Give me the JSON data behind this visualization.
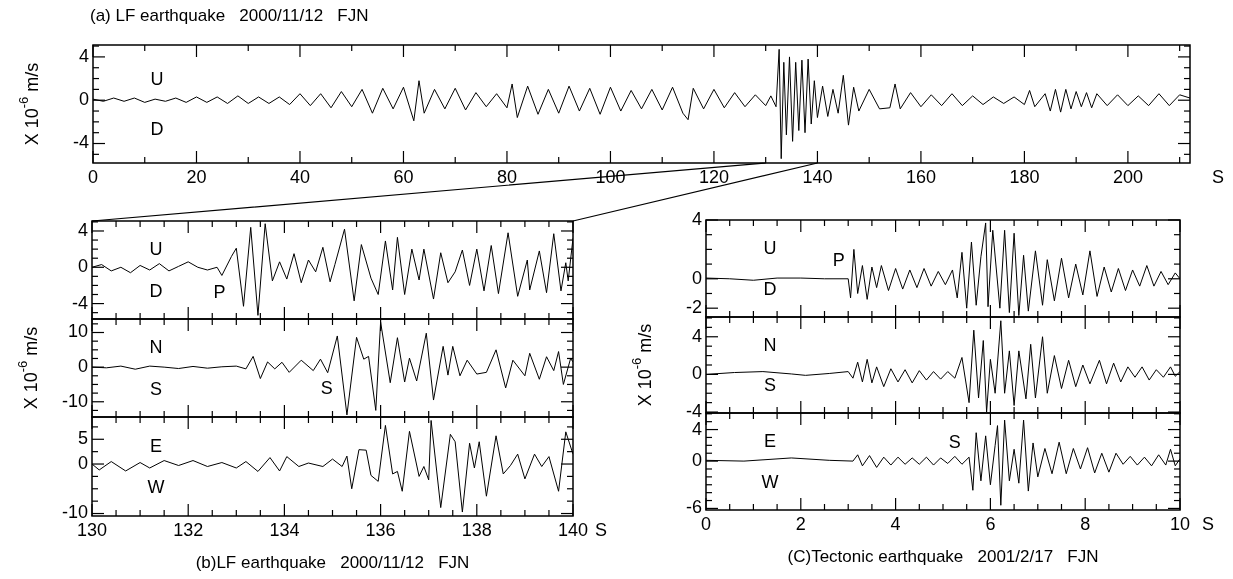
{
  "chart_data": [
    {
      "type": "line",
      "title": "(a) LF earthquake   2000/11/12   FJN",
      "xlabel": "S",
      "ylabel": "X 10$^{-6}$ m/s",
      "marker": "none",
      "xlim": [
        0,
        212
      ],
      "ylim": [
        -5.8,
        5.1
      ],
      "xticks": [
        0,
        {
          "value": 10,
          "label": null
        },
        20,
        {
          "value": 30,
          "label": null
        },
        40,
        {
          "value": 50,
          "label": null
        },
        60,
        {
          "value": 70,
          "label": null
        },
        80,
        {
          "value": 90,
          "label": null
        },
        100,
        {
          "value": 110,
          "label": null
        },
        120,
        {
          "value": 130,
          "label": null
        },
        140,
        {
          "value": 150,
          "label": null
        },
        160,
        {
          "value": 170,
          "label": null
        },
        180,
        {
          "value": 190,
          "label": null
        },
        200,
        {
          "value": 210,
          "label": null
        }
      ],
      "yticks": [
        {
          "value": -5,
          "label": null
        },
        -4,
        {
          "value": -3,
          "label": null
        },
        {
          "value": -2,
          "label": null
        },
        {
          "value": -1,
          "label": null
        },
        0,
        {
          "value": 1,
          "label": null
        },
        {
          "value": 2,
          "label": null
        },
        {
          "value": 3,
          "label": null
        },
        4,
        {
          "value": 5,
          "label": null
        }
      ],
      "annotations": [
        "U",
        "D"
      ],
      "series": [
        {
          "color": "#000000",
          "x": [
            0,
            2,
            4,
            6,
            8,
            10,
            12,
            14,
            16,
            18,
            20,
            22,
            24,
            26,
            28,
            30,
            32,
            34,
            36,
            38,
            40,
            42,
            44,
            46,
            48,
            50,
            52,
            54,
            56,
            58,
            60,
            62,
            63,
            64,
            66,
            68,
            70,
            72,
            74,
            76,
            78,
            80,
            81,
            82,
            84,
            86,
            88,
            90,
            92,
            94,
            96,
            98,
            100,
            102,
            104,
            106,
            108,
            110,
            112,
            114,
            115,
            116,
            118,
            120,
            122,
            124,
            126,
            128,
            130,
            131,
            132,
            132.6,
            133,
            133.5,
            134,
            134.6,
            135.2,
            135.8,
            136.4,
            137,
            137.6,
            138.2,
            138.8,
            139.4,
            140,
            141,
            142,
            143,
            144,
            145,
            146,
            147,
            148,
            150,
            152,
            154,
            155,
            156,
            158,
            160,
            162,
            164,
            166,
            168,
            170,
            172,
            174,
            176,
            178,
            180,
            181,
            182,
            184,
            185,
            186,
            187,
            188,
            189,
            190,
            191,
            192,
            193,
            194,
            196,
            198,
            200,
            202,
            204,
            206,
            208,
            210,
            212
          ],
          "values": [
            0.1,
            -0.1,
            0.2,
            -0.1,
            0.2,
            -0.2,
            0.1,
            -0.1,
            0.2,
            -0.2,
            0.3,
            -0.2,
            0.3,
            -0.3,
            0.4,
            -0.3,
            0.3,
            -0.3,
            0.3,
            -0.4,
            0.6,
            -0.5,
            0.6,
            -0.7,
            0.8,
            -0.6,
            1.0,
            -1.2,
            1.1,
            -0.8,
            1.2,
            -1.9,
            1.8,
            -1.2,
            1.0,
            -0.8,
            1.1,
            -0.9,
            0.7,
            -0.6,
            0.6,
            -0.7,
            1.5,
            -1.6,
            1.3,
            -1.3,
            1.0,
            -1.2,
            1.3,
            -1.0,
            1.1,
            -1.3,
            1.2,
            -1.0,
            0.9,
            -0.8,
            1.0,
            -0.9,
            1.2,
            -1.2,
            -1.8,
            1.1,
            -0.8,
            1.0,
            -0.7,
            0.7,
            -0.6,
            0.5,
            -0.5,
            0.4,
            -0.6,
            4.7,
            -5.4,
            3.5,
            -3.2,
            4.0,
            -3.8,
            3.5,
            -2.8,
            3.7,
            -3.0,
            3.8,
            -2.2,
            1.8,
            -1.6,
            1.3,
            -1.5,
            1.0,
            -1.2,
            2.3,
            -2.3,
            1.2,
            -1.0,
            1.0,
            -0.8,
            -0.7,
            1.5,
            -0.8,
            0.7,
            -0.6,
            0.5,
            -0.5,
            0.6,
            -0.5,
            0.4,
            -0.4,
            0.3,
            -0.3,
            0.3,
            -0.4,
            0.9,
            -0.6,
            0.6,
            -1.0,
            1.0,
            -1.1,
            1.0,
            -0.8,
            0.8,
            -0.6,
            0.7,
            -0.7,
            0.6,
            -0.5,
            0.5,
            -0.5,
            0.4,
            -0.5,
            0.6,
            -0.5,
            0.5,
            0.2
          ]
        }
      ]
    },
    {
      "type": "line",
      "marker": "none",
      "tick_labels": "y",
      "xlim": [
        130,
        140
      ],
      "ylim": [
        -5.7,
        5.1
      ],
      "xticks": [
        130,
        {
          "value": 130.5,
          "label": null
        },
        {
          "value": 131,
          "label": null
        },
        {
          "value": 131.5,
          "label": null
        },
        132,
        {
          "value": 132.5,
          "label": null
        },
        {
          "value": 133,
          "label": null
        },
        {
          "value": 133.5,
          "label": null
        },
        134,
        {
          "value": 134.5,
          "label": null
        },
        {
          "value": 135,
          "label": null
        },
        {
          "value": 135.5,
          "label": null
        },
        136,
        {
          "value": 136.5,
          "label": null
        },
        {
          "value": 137,
          "label": null
        },
        {
          "value": 137.5,
          "label": null
        },
        138,
        {
          "value": 138.5,
          "label": null
        },
        {
          "value": 139,
          "label": null
        },
        {
          "value": 139.5,
          "label": null
        },
        140
      ],
      "yticks": [
        {
          "value": -5,
          "label": null
        },
        -4,
        {
          "value": -3,
          "label": null
        },
        {
          "value": -2,
          "label": null
        },
        {
          "value": -1,
          "label": null
        },
        0,
        {
          "value": 1,
          "label": null
        },
        {
          "value": 2,
          "label": null
        },
        {
          "value": 3,
          "label": null
        },
        4,
        {
          "value": 5,
          "label": null
        }
      ],
      "annotations": [
        "U",
        "D",
        "P"
      ],
      "series": [
        {
          "color": "#000000",
          "x": [
            130,
            130.2,
            130.4,
            130.6,
            130.8,
            131,
            131.2,
            131.4,
            131.6,
            131.8,
            132,
            132.2,
            132.4,
            132.6,
            132.7,
            132.9,
            133,
            133.15,
            133.3,
            133.45,
            133.6,
            133.75,
            133.9,
            134.05,
            134.2,
            134.35,
            134.5,
            134.65,
            134.8,
            134.95,
            135.05,
            135.25,
            135.45,
            135.6,
            135.8,
            135.95,
            136.1,
            136.25,
            136.35,
            136.5,
            136.65,
            136.8,
            136.9,
            137.1,
            137.25,
            137.4,
            137.55,
            137.7,
            137.85,
            138,
            138.15,
            138.3,
            138.45,
            138.65,
            138.85,
            139.05,
            139.1,
            139.3,
            139.45,
            139.6,
            139.75,
            139.85,
            139.9,
            140
          ],
          "values": [
            0,
            0.3,
            -0.4,
            0,
            -0.6,
            0.2,
            -0.3,
            0.4,
            -0.4,
            0.1,
            0.6,
            0,
            -0.3,
            0,
            -0.9,
            1.2,
            2.1,
            -4.3,
            4.4,
            -5.3,
            4.8,
            -1.5,
            0.6,
            -1.3,
            1.5,
            -1.7,
            0.8,
            -0.5,
            2.2,
            -1.6,
            0.3,
            4.2,
            -3.7,
            2.5,
            -1.2,
            -3.0,
            2.9,
            -2.5,
            3.3,
            -3.0,
            2.0,
            -1.4,
            2.0,
            -3.5,
            1.6,
            -1.7,
            -0.5,
            1.9,
            -2.0,
            2.0,
            -2.6,
            2.4,
            -2.9,
            3.8,
            -3.2,
            0.8,
            -2.5,
            1.8,
            -2.8,
            3.7,
            -2.6,
            0.5,
            -1.5,
            3.2
          ]
        }
      ]
    },
    {
      "type": "line",
      "ylabel": "X 10$^{-6}$ m/s",
      "marker": "none",
      "tick_labels": "y",
      "xlim": [
        130,
        140
      ],
      "ylim": [
        -14.4,
        13.9
      ],
      "xticks": [
        130,
        {
          "value": 130.5,
          "label": null
        },
        {
          "value": 131,
          "label": null
        },
        {
          "value": 131.5,
          "label": null
        },
        132,
        {
          "value": 132.5,
          "label": null
        },
        {
          "value": 133,
          "label": null
        },
        {
          "value": 133.5,
          "label": null
        },
        134,
        {
          "value": 134.5,
          "label": null
        },
        {
          "value": 135,
          "label": null
        },
        {
          "value": 135.5,
          "label": null
        },
        136,
        {
          "value": 136.5,
          "label": null
        },
        {
          "value": 137,
          "label": null
        },
        {
          "value": 137.5,
          "label": null
        },
        138,
        {
          "value": 138.5,
          "label": null
        },
        {
          "value": 139,
          "label": null
        },
        {
          "value": 139.5,
          "label": null
        },
        140
      ],
      "yticks": [
        {
          "value": -12.5,
          "label": null
        },
        -10,
        {
          "value": -7.5,
          "label": null
        },
        {
          "value": -5,
          "label": null
        },
        {
          "value": -2.5,
          "label": null
        },
        0,
        {
          "value": 2.5,
          "label": null
        },
        {
          "value": 5,
          "label": null
        },
        {
          "value": 7.5,
          "label": null
        },
        10,
        {
          "value": 12.5,
          "label": null
        }
      ],
      "annotations": [
        "N",
        "S",
        "S"
      ],
      "series": [
        {
          "color": "#000000",
          "x": [
            130,
            130.3,
            130.6,
            130.9,
            131.2,
            131.5,
            131.8,
            132.1,
            132.4,
            132.7,
            133,
            133.2,
            133.35,
            133.5,
            133.65,
            133.8,
            133.95,
            134.1,
            134.35,
            134.6,
            134.75,
            134.9,
            135.1,
            135.3,
            135.5,
            135.65,
            135.75,
            135.9,
            136,
            136.2,
            136.35,
            136.5,
            136.6,
            136.75,
            136.95,
            137.1,
            137.3,
            137.4,
            137.5,
            137.65,
            137.8,
            138,
            138.2,
            138.4,
            138.6,
            138.75,
            139,
            139.1,
            139.3,
            139.45,
            139.6,
            139.7,
            139.8,
            139.95,
            140
          ],
          "values": [
            0,
            -0.2,
            0.3,
            -0.6,
            0.3,
            0,
            -0.4,
            0.2,
            -0.3,
            0.1,
            0.3,
            -0.5,
            3.1,
            -3.3,
            1.5,
            -0.5,
            1.4,
            -1.5,
            2.0,
            -1.0,
            2.3,
            -1.6,
            9.0,
            -13.8,
            8.6,
            2.3,
            3.1,
            -12.5,
            13.0,
            -4.5,
            8.5,
            -4.3,
            2.6,
            -4.0,
            9.8,
            -9.5,
            6.0,
            -2.3,
            6.0,
            -2.5,
            2.0,
            -2.0,
            -1.5,
            5.0,
            -6.0,
            2.0,
            -2.5,
            4.0,
            -3.5,
            3.0,
            -1.0,
            4.5,
            -5.0,
            2.5,
            1.5
          ]
        }
      ]
    },
    {
      "type": "line",
      "title": "(b)LF earthquake   2000/11/12   FJN",
      "xlabel": "S",
      "marker": "none",
      "xlim": [
        130,
        140
      ],
      "ylim": [
        -10.5,
        9.5
      ],
      "xticks": [
        130,
        {
          "value": 130.5,
          "label": null
        },
        {
          "value": 131,
          "label": null
        },
        {
          "value": 131.5,
          "label": null
        },
        132,
        {
          "value": 132.5,
          "label": null
        },
        {
          "value": 133,
          "label": null
        },
        {
          "value": 133.5,
          "label": null
        },
        134,
        {
          "value": 134.5,
          "label": null
        },
        {
          "value": 135,
          "label": null
        },
        {
          "value": 135.5,
          "label": null
        },
        136,
        {
          "value": 136.5,
          "label": null
        },
        {
          "value": 137,
          "label": null
        },
        {
          "value": 137.5,
          "label": null
        },
        138,
        {
          "value": 138.5,
          "label": null
        },
        {
          "value": 139,
          "label": null
        },
        {
          "value": 139.5,
          "label": null
        },
        140
      ],
      "yticks": [
        -10,
        {
          "value": -7.5,
          "label": null
        },
        {
          "value": -5,
          "label": null
        },
        {
          "value": -2.5,
          "label": null
        },
        0,
        {
          "value": 2.5,
          "label": null
        },
        5,
        {
          "value": 7.5,
          "label": null
        }
      ],
      "annotations": [
        "E",
        "W"
      ],
      "series": [
        {
          "color": "#000000",
          "x": [
            130,
            130.15,
            130.4,
            130.7,
            131,
            131.2,
            131.5,
            131.8,
            132.1,
            132.4,
            132.7,
            133,
            133.2,
            133.45,
            133.7,
            133.9,
            134.05,
            134.3,
            134.5,
            134.8,
            135,
            135.2,
            135.3,
            135.4,
            135.55,
            135.7,
            135.8,
            135.95,
            136.1,
            136.25,
            136.35,
            136.45,
            136.6,
            136.8,
            136.9,
            137,
            137.05,
            137.25,
            137.45,
            137.55,
            137.7,
            137.85,
            137.95,
            138.05,
            138.2,
            138.4,
            138.55,
            138.7,
            138.85,
            139,
            139.2,
            139.35,
            139.5,
            139.7,
            139.85,
            140
          ],
          "values": [
            0,
            -1.2,
            0.5,
            -1.4,
            0.3,
            -0.8,
            0.7,
            -0.3,
            0.7,
            -0.5,
            0.3,
            -0.8,
            0.5,
            -1.5,
            1.3,
            -1.4,
            1.5,
            -0.5,
            0.2,
            -0.5,
            1.0,
            -0.5,
            1.6,
            -5.0,
            2.9,
            2.8,
            -2.3,
            -3.5,
            7.8,
            -2.0,
            -1.5,
            -5.5,
            6.6,
            -2.5,
            -0.5,
            -3.2,
            8.8,
            -8.8,
            6.0,
            4.5,
            -9.7,
            4.2,
            -0.8,
            4.5,
            -6.5,
            5.7,
            -2.0,
            -0.3,
            2.0,
            -3.0,
            2.0,
            -0.5,
            1.5,
            -5.5,
            6.5,
            2.0
          ]
        }
      ]
    },
    {
      "type": "line",
      "marker": "none",
      "tick_labels": "y",
      "xlim": [
        0,
        10
      ],
      "ylim": [
        -2.6,
        4
      ],
      "xticks": [
        0,
        {
          "value": 0.5,
          "label": null
        },
        {
          "value": 1,
          "label": null
        },
        {
          "value": 1.5,
          "label": null
        },
        2,
        {
          "value": 2.5,
          "label": null
        },
        {
          "value": 3,
          "label": null
        },
        {
          "value": 3.5,
          "label": null
        },
        4,
        {
          "value": 4.5,
          "label": null
        },
        {
          "value": 5,
          "label": null
        },
        {
          "value": 5.5,
          "label": null
        },
        6,
        {
          "value": 6.5,
          "label": null
        },
        {
          "value": 7,
          "label": null
        },
        {
          "value": 7.5,
          "label": null
        },
        8,
        {
          "value": 8.5,
          "label": null
        },
        {
          "value": 9,
          "label": null
        },
        {
          "value": 9.5,
          "label": null
        },
        10
      ],
      "yticks": [
        -2,
        {
          "value": -1,
          "label": null
        },
        0,
        {
          "value": 1,
          "label": null
        },
        {
          "value": 2,
          "label": null
        },
        {
          "value": 3,
          "label": null
        },
        4
      ],
      "annotations": [
        "U",
        "D",
        "P"
      ],
      "series": [
        {
          "color": "#000000",
          "x": [
            0,
            0.5,
            1,
            1.5,
            2,
            2.5,
            3,
            3.05,
            3.12,
            3.2,
            3.3,
            3.4,
            3.5,
            3.6,
            3.7,
            3.85,
            4,
            4.15,
            4.3,
            4.45,
            4.6,
            4.75,
            4.9,
            5.05,
            5.2,
            5.3,
            5.4,
            5.5,
            5.6,
            5.7,
            5.8,
            5.9,
            5.95,
            6.05,
            6.2,
            6.3,
            6.4,
            6.5,
            6.6,
            6.7,
            6.8,
            6.95,
            7.1,
            7.2,
            7.35,
            7.5,
            7.65,
            7.8,
            7.95,
            8.1,
            8.25,
            8.4,
            8.55,
            8.7,
            8.85,
            9,
            9.15,
            9.3,
            9.45,
            9.6,
            9.75,
            9.9,
            10
          ],
          "values": [
            0.05,
            0,
            -0.1,
            0.05,
            0.05,
            0,
            0,
            -1.3,
            2.0,
            -1.0,
            0.9,
            -1.4,
            0.8,
            -0.6,
            0.9,
            -0.8,
            0.7,
            -0.7,
            0.6,
            -0.6,
            0.7,
            -0.5,
            0.5,
            -0.4,
            0.6,
            -1.3,
            1.8,
            -2.0,
            2.5,
            -1.8,
            1.5,
            3.8,
            -1.9,
            3.3,
            -2.0,
            3.3,
            -2.3,
            3.1,
            -2.5,
            1.6,
            -2.2,
            1.9,
            -1.8,
            1.3,
            -1.5,
            1.4,
            -1.3,
            1.0,
            -1.1,
            1.9,
            -1.2,
            0.8,
            -0.9,
            0.7,
            -0.8,
            0.6,
            -0.5,
            0.9,
            -0.5,
            0.5,
            -0.4,
            0.4,
            0
          ]
        }
      ]
    },
    {
      "type": "line",
      "ylabel": "X 10$^{-6}$ m/s",
      "marker": "none",
      "tick_labels": "y",
      "xlim": [
        0,
        10
      ],
      "ylim": [
        -4.1,
        6.1
      ],
      "xticks": [
        0,
        {
          "value": 0.5,
          "label": null
        },
        {
          "value": 1,
          "label": null
        },
        {
          "value": 1.5,
          "label": null
        },
        2,
        {
          "value": 2.5,
          "label": null
        },
        {
          "value": 3,
          "label": null
        },
        {
          "value": 3.5,
          "label": null
        },
        4,
        {
          "value": 4.5,
          "label": null
        },
        {
          "value": 5,
          "label": null
        },
        {
          "value": 5.5,
          "label": null
        },
        6,
        {
          "value": 6.5,
          "label": null
        },
        {
          "value": 7,
          "label": null
        },
        {
          "value": 7.5,
          "label": null
        },
        8,
        {
          "value": 8.5,
          "label": null
        },
        {
          "value": 9,
          "label": null
        },
        {
          "value": 9.5,
          "label": null
        },
        10
      ],
      "yticks": [
        -4,
        {
          "value": -3,
          "label": null
        },
        {
          "value": -2,
          "label": null
        },
        {
          "value": -1,
          "label": null
        },
        0,
        {
          "value": 1,
          "label": null
        },
        {
          "value": 2,
          "label": null
        },
        {
          "value": 3,
          "label": null
        },
        4,
        {
          "value": 5,
          "label": null
        },
        {
          "value": 6,
          "label": null
        }
      ],
      "annotations": [
        "N",
        "S"
      ],
      "series": [
        {
          "color": "#000000",
          "x": [
            0,
            0.6,
            1.2,
            1.8,
            2.1,
            2.6,
            3,
            3.1,
            3.2,
            3.3,
            3.4,
            3.5,
            3.6,
            3.75,
            3.9,
            4.05,
            4.2,
            4.35,
            4.5,
            4.65,
            4.8,
            4.95,
            5.1,
            5.25,
            5.4,
            5.55,
            5.65,
            5.75,
            5.85,
            5.92,
            6,
            6.1,
            6.22,
            6.3,
            6.4,
            6.5,
            6.6,
            6.75,
            6.85,
            6.95,
            7.1,
            7.2,
            7.35,
            7.5,
            7.65,
            7.8,
            7.95,
            8.1,
            8.3,
            8.45,
            8.6,
            8.75,
            8.9,
            9.05,
            9.2,
            9.35,
            9.5,
            9.65,
            9.8,
            9.9,
            10
          ],
          "values": [
            0,
            0.2,
            0.3,
            0.05,
            -0.1,
            0.1,
            0.3,
            -0.4,
            1.3,
            -0.8,
            1.6,
            -0.9,
            0.8,
            -1.3,
            0.6,
            -0.8,
            0.5,
            -0.9,
            0.4,
            -0.6,
            0.3,
            -0.5,
            0.3,
            -0.4,
            1.8,
            -3.0,
            4.7,
            -2.5,
            3.6,
            -4.0,
            1.6,
            -2.0,
            5.7,
            -2.0,
            2.5,
            -3.3,
            2.5,
            -2.6,
            3.2,
            -2.5,
            4.0,
            -2.0,
            2.0,
            -1.5,
            1.5,
            -1.3,
            1.0,
            -1.0,
            1.5,
            -1.0,
            1.2,
            -0.8,
            0.8,
            -0.3,
            0.8,
            -0.6,
            0.5,
            -0.3,
            0.8,
            -0.2,
            0.3
          ]
        }
      ]
    },
    {
      "type": "line",
      "title": "(C)Tectonic earthquake   2001/2/17   FJN",
      "xlabel": "S",
      "marker": "none",
      "xlim": [
        0,
        10
      ],
      "ylim": [
        -6.2,
        6.1
      ],
      "xticks": [
        0,
        {
          "value": 0.5,
          "label": null
        },
        {
          "value": 1,
          "label": null
        },
        {
          "value": 1.5,
          "label": null
        },
        2,
        {
          "value": 2.5,
          "label": null
        },
        {
          "value": 3,
          "label": null
        },
        {
          "value": 3.5,
          "label": null
        },
        4,
        {
          "value": 4.5,
          "label": null
        },
        {
          "value": 5,
          "label": null
        },
        {
          "value": 5.5,
          "label": null
        },
        6,
        {
          "value": 6.5,
          "label": null
        },
        {
          "value": 7,
          "label": null
        },
        {
          "value": 7.5,
          "label": null
        },
        8,
        {
          "value": 8.5,
          "label": null
        },
        {
          "value": 9,
          "label": null
        },
        {
          "value": 9.5,
          "label": null
        },
        10
      ],
      "yticks": [
        -6,
        {
          "value": -5,
          "label": null
        },
        {
          "value": -4,
          "label": null
        },
        {
          "value": -3,
          "label": null
        },
        {
          "value": -2,
          "label": null
        },
        {
          "value": -1,
          "label": null
        },
        0,
        {
          "value": 1,
          "label": null
        },
        {
          "value": 2,
          "label": null
        },
        {
          "value": 3,
          "label": null
        },
        4,
        {
          "value": 5,
          "label": null
        },
        {
          "value": 6,
          "label": null
        }
      ],
      "annotations": [
        "E",
        "W",
        "S"
      ],
      "series": [
        {
          "color": "#000000",
          "x": [
            0,
            0.8,
            1.8,
            2.6,
            3.1,
            3.2,
            3.3,
            3.45,
            3.6,
            3.75,
            3.9,
            4.05,
            4.2,
            4.35,
            4.5,
            4.65,
            4.8,
            4.95,
            5.1,
            5.25,
            5.4,
            5.55,
            5.63,
            5.7,
            5.8,
            5.9,
            6,
            6.1,
            6.15,
            6.22,
            6.3,
            6.4,
            6.5,
            6.6,
            6.7,
            6.8,
            6.9,
            7,
            7.15,
            7.3,
            7.45,
            7.6,
            7.75,
            7.9,
            8.05,
            8.2,
            8.35,
            8.5,
            8.65,
            8.8,
            8.95,
            9.1,
            9.25,
            9.4,
            9.55,
            9.7,
            9.8,
            9.9,
            10
          ],
          "values": [
            0.1,
            0,
            0.4,
            0.1,
            0,
            0.8,
            -0.6,
            0.7,
            -0.8,
            0.5,
            -0.5,
            0.5,
            -0.4,
            0.4,
            -0.4,
            0.5,
            -0.5,
            0.4,
            -0.3,
            0.6,
            -0.4,
            0.5,
            -3.7,
            3.6,
            -2.5,
            3.2,
            -3.0,
            2.0,
            4.5,
            -5.6,
            5.2,
            -2.5,
            1.5,
            -2.8,
            5.2,
            -3.8,
            2.3,
            -2.0,
            1.6,
            -1.6,
            2.4,
            -1.6,
            1.6,
            -1.0,
            1.7,
            -1.5,
            1.0,
            -1.4,
            1.0,
            -0.4,
            0.6,
            -0.5,
            0.5,
            -0.6,
            0.8,
            -0.5,
            1.5,
            -0.6,
            0.3
          ]
        }
      ]
    }
  ]
}
